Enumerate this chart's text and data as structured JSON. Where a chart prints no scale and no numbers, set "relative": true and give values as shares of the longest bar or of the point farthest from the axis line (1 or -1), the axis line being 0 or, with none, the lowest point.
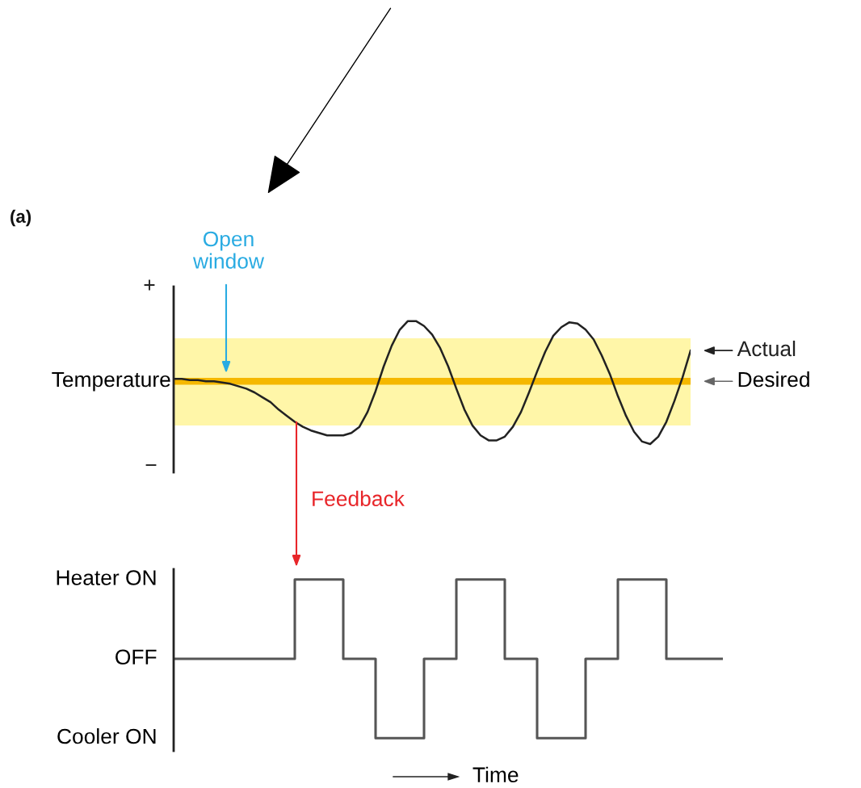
{
  "chart_data": [
    {
      "type": "line",
      "relative": true,
      "ylabel": "Temperature",
      "legend": "right",
      "annotations": [
        "(a)",
        "Open window",
        "Feedback",
        "+",
        "−"
      ],
      "categories": [
        null,
        null,
        null,
        null,
        null,
        null,
        null,
        null,
        null,
        null,
        null,
        null,
        null,
        null,
        null,
        null,
        null,
        null,
        null,
        null,
        null,
        null,
        null,
        null,
        null,
        null,
        null,
        null,
        null,
        null,
        null,
        null,
        null,
        null,
        null,
        null,
        null,
        null,
        null,
        null,
        null,
        null,
        null,
        null,
        null,
        null,
        null,
        null,
        null,
        null,
        null,
        null,
        null,
        null,
        null,
        null,
        null,
        null,
        null,
        null,
        null,
        null,
        null,
        null,
        null
      ],
      "series": [
        {
          "name": "Actual",
          "color": "#222222",
          "values": [
            0.53,
            0.53,
            0.52,
            0.52,
            0.51,
            0.51,
            0.5,
            0.49,
            0.47,
            0.45,
            0.42,
            0.38,
            0.34,
            0.28,
            0.23,
            0.18,
            0.14,
            0.11,
            0.09,
            0.07,
            0.07,
            0.07,
            0.09,
            0.14,
            0.26,
            0.43,
            0.63,
            0.8,
            0.93,
            1,
            1,
            0.96,
            0.89,
            0.78,
            0.63,
            0.45,
            0.28,
            0.15,
            0.07,
            0.03,
            0.03,
            0.06,
            0.14,
            0.26,
            0.42,
            0.59,
            0.75,
            0.88,
            0.95,
            0.99,
            0.98,
            0.93,
            0.85,
            0.72,
            0.57,
            0.39,
            0.23,
            0.1,
            0.02,
            0,
            0.06,
            0.18,
            0.35,
            0.54,
            0.76
          ]
        }
      ],
      "ref_lines": [
        {
          "axis": "y",
          "value": 0.51,
          "label": "Desired",
          "color": "#f5b800"
        }
      ],
      "bands": [
        {
          "axis": "y",
          "from": 0.15,
          "to": 0.86,
          "color": "#fff6a8"
        }
      ]
    },
    {
      "type": "step",
      "xlabel": "Time",
      "relative": true,
      "color": "#555555",
      "annotations": [
        "Heater ON",
        "OFF",
        "Cooler ON"
      ],
      "categories": [
        null,
        null,
        null,
        null,
        null,
        null,
        null,
        null,
        null,
        null,
        null,
        null,
        null,
        null,
        null,
        null,
        null,
        null,
        null,
        null,
        null,
        null,
        null,
        null,
        null,
        null,
        null,
        null,
        null,
        null,
        null,
        null,
        null,
        null,
        null,
        null,
        null,
        null,
        null,
        null,
        null,
        null,
        null,
        null,
        null,
        null,
        null,
        null,
        null,
        null,
        null,
        null,
        null,
        null,
        null,
        null,
        null,
        null,
        null,
        null,
        null,
        null,
        null,
        null,
        null,
        null,
        null,
        null,
        null
      ],
      "values": [
        0.5,
        0.5,
        0.5,
        0.5,
        0.5,
        0.5,
        0.5,
        0.5,
        0.5,
        0.5,
        0.5,
        0.5,
        0.5,
        0.5,
        0.5,
        1,
        1,
        1,
        1,
        1,
        1,
        0.5,
        0.5,
        0.5,
        0.5,
        0,
        0,
        0,
        0,
        0,
        0,
        0.5,
        0.5,
        0.5,
        0.5,
        1,
        1,
        1,
        1,
        1,
        1,
        0.5,
        0.5,
        0.5,
        0.5,
        0,
        0,
        0,
        0,
        0,
        0,
        0.5,
        0.5,
        0.5,
        0.5,
        1,
        1,
        1,
        1,
        1,
        1,
        0.5,
        0.5,
        0.5,
        0.5,
        0.5,
        0.5,
        0.5,
        0.5
      ]
    }
  ]
}
